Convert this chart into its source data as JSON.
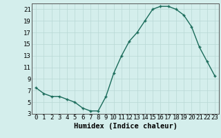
{
  "x": [
    0,
    1,
    2,
    3,
    4,
    5,
    6,
    7,
    8,
    9,
    10,
    11,
    12,
    13,
    14,
    15,
    16,
    17,
    18,
    19,
    20,
    21,
    22,
    23
  ],
  "y": [
    7.5,
    6.5,
    6.0,
    6.0,
    5.5,
    5.0,
    4.0,
    3.5,
    3.5,
    6.0,
    10.0,
    13.0,
    15.5,
    17.0,
    19.0,
    21.0,
    21.5,
    21.5,
    21.0,
    20.0,
    18.0,
    14.5,
    12.0,
    9.5
  ],
  "line_color": "#1a6b5a",
  "marker": "+",
  "bg_color": "#d4eeec",
  "grid_color": "#b8d8d5",
  "xlabel": "Humidex (Indice chaleur)",
  "xlabel_fontsize": 7.5,
  "tick_fontsize": 6.5,
  "ylim": [
    3,
    22
  ],
  "xlim": [
    -0.5,
    23.5
  ],
  "yticks": [
    3,
    5,
    7,
    9,
    11,
    13,
    15,
    17,
    19,
    21
  ],
  "xticks": [
    0,
    1,
    2,
    3,
    4,
    5,
    6,
    7,
    8,
    9,
    10,
    11,
    12,
    13,
    14,
    15,
    16,
    17,
    18,
    19,
    20,
    21,
    22,
    23
  ]
}
